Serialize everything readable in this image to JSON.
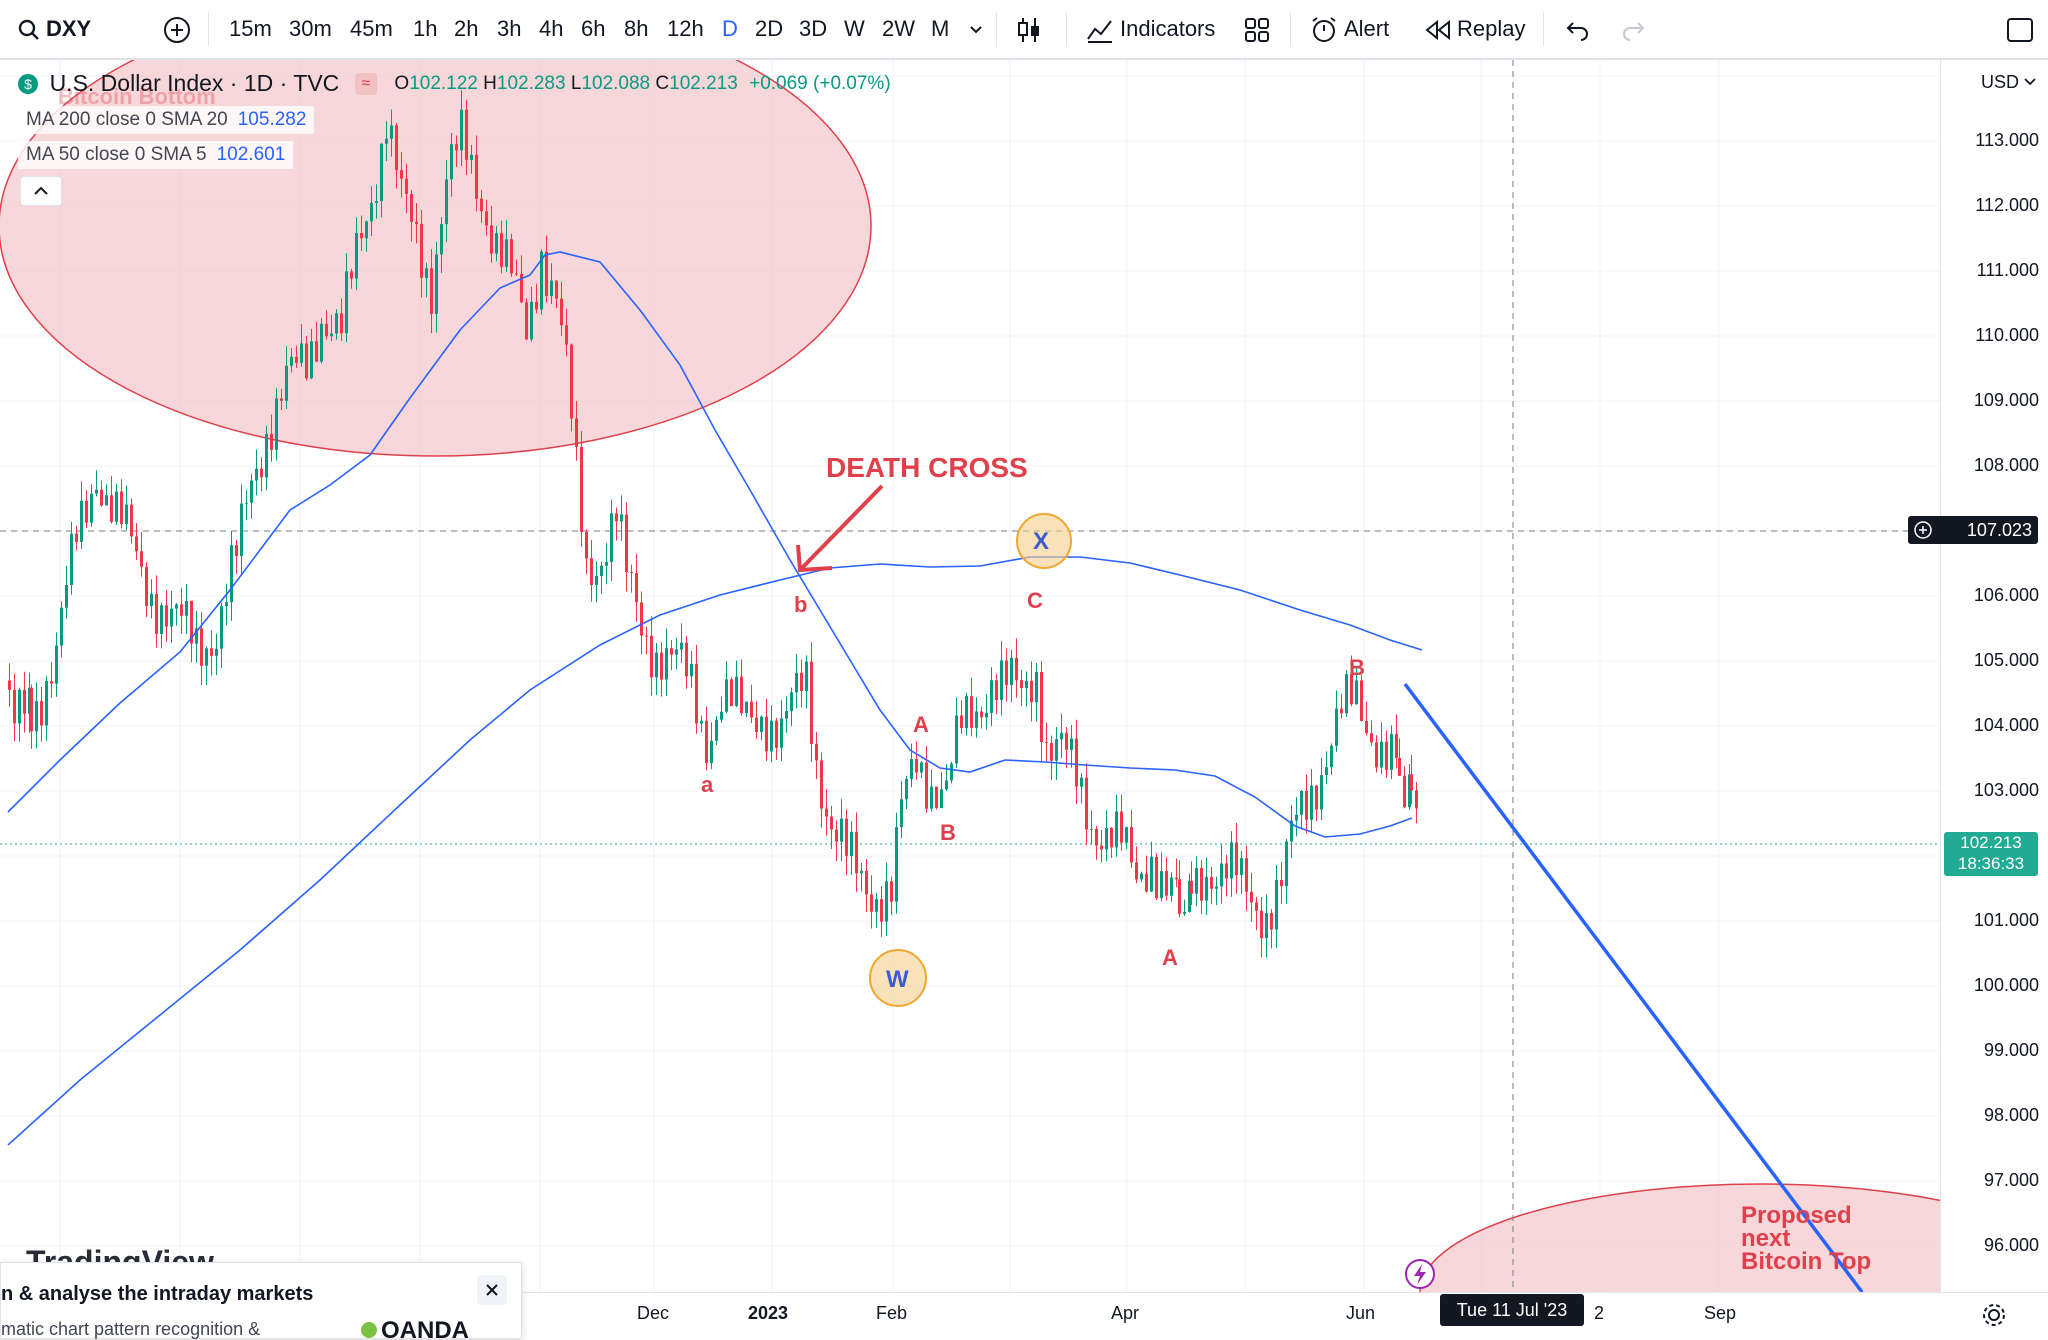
{
  "toolbar": {
    "symbol": "DXY",
    "intervals": [
      "15m",
      "30m",
      "45m",
      "1h",
      "2h",
      "3h",
      "4h",
      "6h",
      "8h",
      "12h",
      "D",
      "2D",
      "3D",
      "W",
      "2W",
      "M"
    ],
    "active_interval": "D",
    "indicators_label": "Indicators",
    "alert_label": "Alert",
    "replay_label": "Replay"
  },
  "legend": {
    "title": "U.S. Dollar Index · 1D · TVC",
    "open_label": "O",
    "open": "102.122",
    "high_label": "H",
    "high": "102.283",
    "low_label": "L",
    "low": "102.088",
    "close_label": "C",
    "close": "102.213",
    "change": "+0.069 (+0.07%)",
    "ma200_label": "MA 200 close 0 SMA 20",
    "ma200_value": "105.282",
    "ma50_label": "MA 50 close 0 SMA 5",
    "ma50_value": "102.601"
  },
  "price_scale": {
    "currency": "USD",
    "ticks": [
      "113.000",
      "112.000",
      "111.000",
      "110.000",
      "109.000",
      "108.000",
      "106.000",
      "105.000",
      "104.000",
      "103.000",
      "101.000",
      "100.000",
      "99.000",
      "98.000",
      "97.000",
      "96.000"
    ],
    "crosshair_price": "107.023",
    "last_price": "102.213",
    "countdown": "18:36:33"
  },
  "time_scale": {
    "labels": [
      "Dec",
      "2023",
      "Feb",
      "Apr",
      "Jun",
      "2",
      "Sep"
    ],
    "crosshair_date": "Tue 11 Jul '23"
  },
  "annotations": {
    "top_circle_text": "Bitcoin Bottom",
    "bottom_circle_text_1": "Proposed",
    "bottom_circle_text_2": "next",
    "bottom_circle_text_3": "Bitcoin Top",
    "death_cross": "DEATH CROSS",
    "wave_x": "X",
    "wave_w": "W",
    "labels": [
      "a",
      "b",
      "C",
      "A",
      "B",
      "A",
      "B"
    ]
  },
  "watermark": "TradingView",
  "popup": {
    "title": "n & analyse the intraday markets",
    "body": "matic chart pattern recognition &",
    "brand": "OANDA"
  },
  "colors": {
    "up": "#089981",
    "down": "#f23645",
    "ma": "#2962ff",
    "annot_red": "#e0404b",
    "circle_fill": "#f2c1c4",
    "wave_circle": "#f5cf8a"
  }
}
